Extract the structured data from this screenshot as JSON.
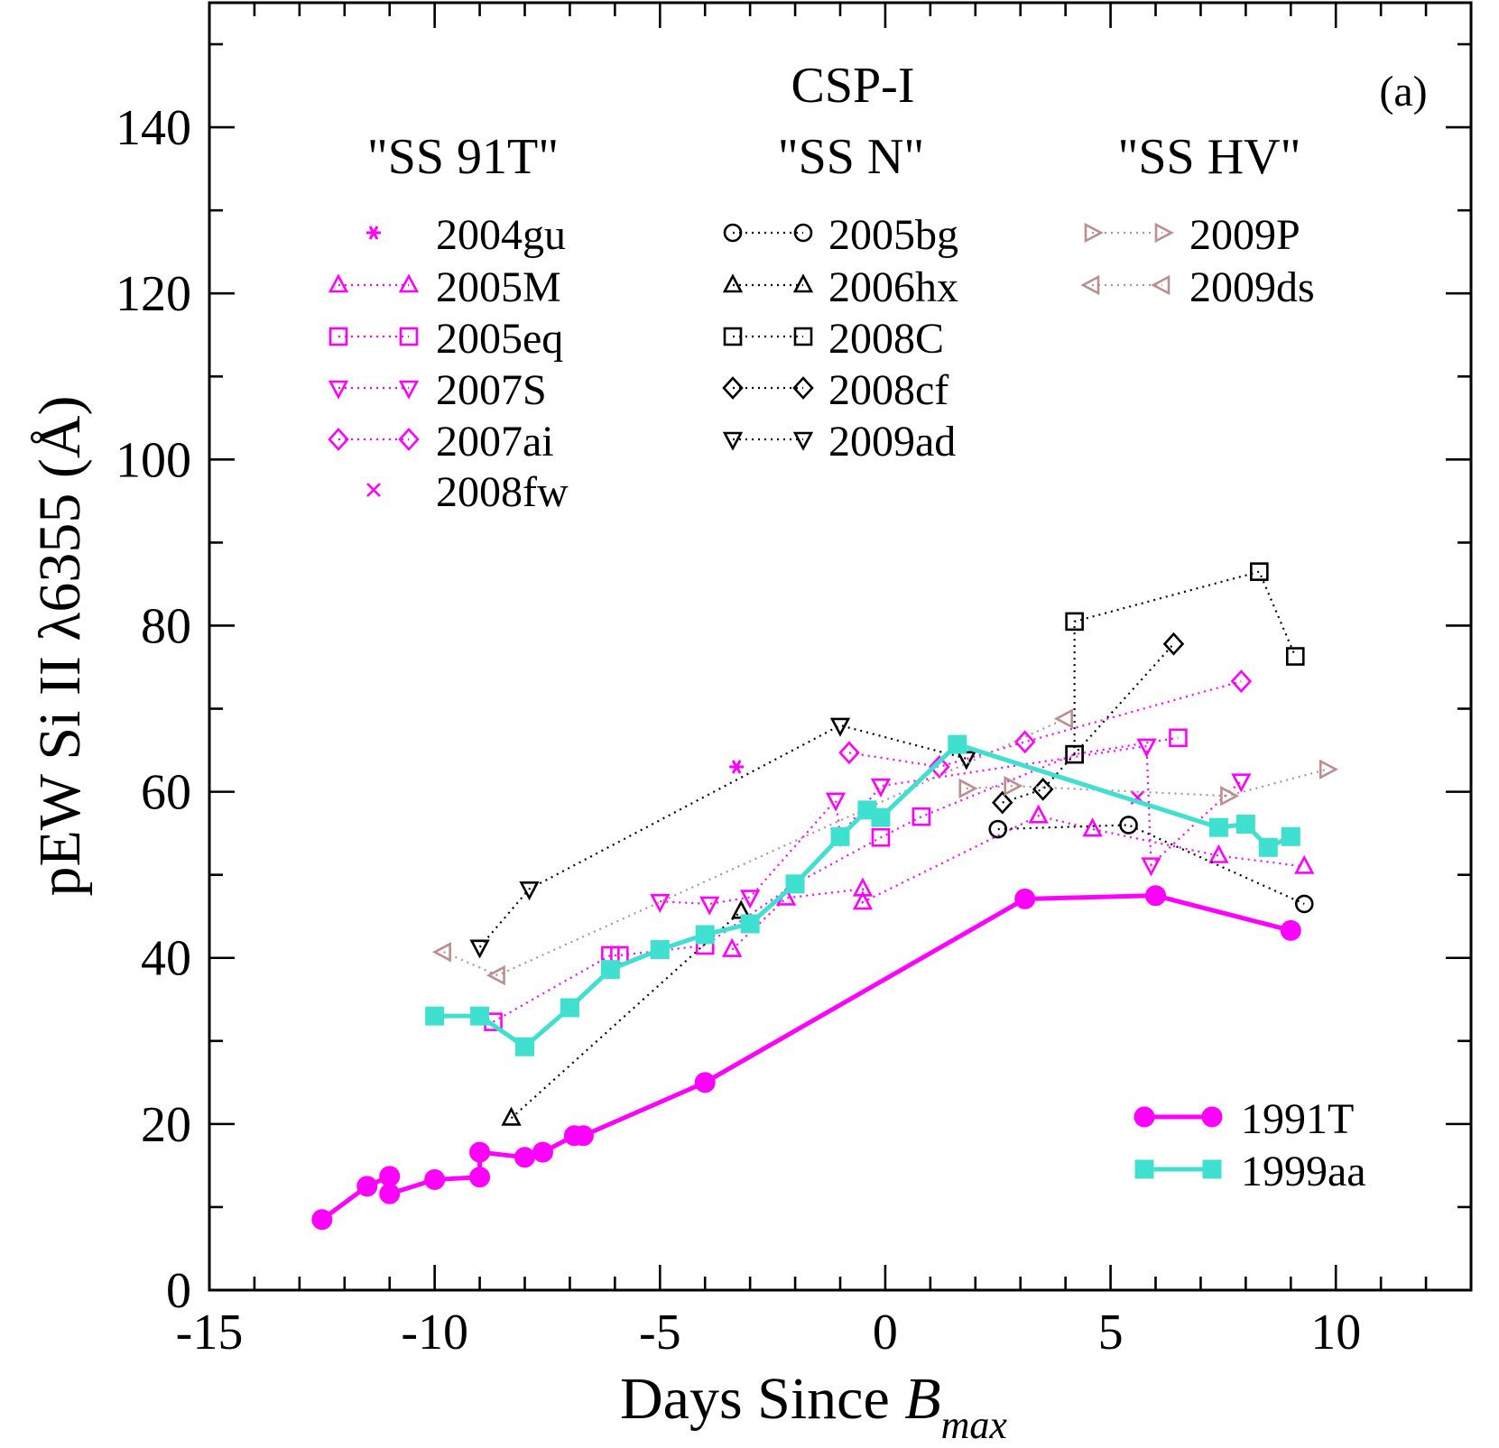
{
  "chart_data": {
    "type": "scatter",
    "title": "CSP-I",
    "panel_label": "(a)",
    "xlabel_main": "Days Since ",
    "xlabel_B": "B",
    "xlabel_sub": "max",
    "ylabel": "pEW Si II λ6355 (Å)",
    "xlim": [
      -15,
      13
    ],
    "ylim": [
      0,
      155
    ],
    "xticks": [
      -15,
      -10,
      -5,
      0,
      5,
      10
    ],
    "yticks": [
      0,
      20,
      40,
      60,
      80,
      100,
      120,
      140
    ],
    "group_labels": [
      "\"SS 91T\"",
      "\"SS N\"",
      "\"SS HV\""
    ],
    "colors": {
      "magenta": "#ff00ff",
      "black": "#000000",
      "brown": "#bc8f8f",
      "cyan": "#40e0d0"
    },
    "series": [
      {
        "name": "2004gu",
        "group": 0,
        "color": "#ff00ff",
        "marker": "asterisk",
        "line": "none",
        "points": [
          [
            -3.3,
            63
          ]
        ]
      },
      {
        "name": "2005M",
        "group": 0,
        "color": "#ff00ff",
        "marker": "triangle-up",
        "line": "dotted",
        "points": [
          [
            -3.4,
            41
          ],
          [
            -2.2,
            47.2
          ],
          [
            -0.5,
            48.3
          ],
          [
            -0.5,
            46.7
          ],
          [
            3.4,
            57.1
          ],
          [
            4.6,
            55.5
          ],
          [
            7.4,
            52.3
          ],
          [
            9.3,
            51
          ]
        ]
      },
      {
        "name": "2005eq",
        "group": 0,
        "color": "#ff00ff",
        "marker": "square",
        "line": "dotted",
        "points": [
          [
            -8.7,
            32.3
          ],
          [
            -6.1,
            40.3
          ],
          [
            -5.9,
            40.3
          ],
          [
            -4,
            41.5
          ],
          [
            -2,
            48.9
          ],
          [
            -0.1,
            54.5
          ],
          [
            0.8,
            57
          ],
          [
            4.2,
            64.5
          ],
          [
            6.5,
            66.5
          ]
        ]
      },
      {
        "name": "2007S",
        "group": 0,
        "color": "#ff00ff",
        "marker": "triangle-down",
        "line": "dotted",
        "points": [
          [
            -5,
            46.8
          ],
          [
            -3.9,
            46.5
          ],
          [
            -3,
            47.3
          ],
          [
            -1.1,
            59
          ],
          [
            -1,
            54.7
          ],
          [
            -0.1,
            60.7
          ],
          [
            5.8,
            65.5
          ],
          [
            5.9,
            51.2
          ],
          [
            7.9,
            61.3
          ]
        ]
      },
      {
        "name": "2007ai",
        "group": 0,
        "color": "#ff00ff",
        "marker": "diamond",
        "line": "dotted",
        "points": [
          [
            -0.8,
            64.7
          ],
          [
            1.2,
            63
          ],
          [
            3.1,
            66
          ],
          [
            7.9,
            73.3
          ]
        ]
      },
      {
        "name": "2008fw",
        "group": 0,
        "color": "#ff00ff",
        "marker": "x",
        "line": "none",
        "points": [
          [
            5.6,
            59.3
          ]
        ]
      },
      {
        "name": "2005bg",
        "group": 1,
        "color": "#000000",
        "marker": "circle",
        "line": "dotted",
        "points": [
          [
            2.5,
            55.5
          ],
          [
            5.4,
            56
          ],
          [
            9.3,
            46.5
          ]
        ]
      },
      {
        "name": "2006hx",
        "group": 1,
        "color": "#000000",
        "marker": "triangle-up",
        "line": "dotted",
        "points": [
          [
            -8.3,
            20.7
          ],
          [
            -3.2,
            45.6
          ]
        ]
      },
      {
        "name": "2008C",
        "group": 1,
        "color": "#000000",
        "marker": "square",
        "line": "dotted",
        "points": [
          [
            4.2,
            64.5
          ],
          [
            4.2,
            80.5
          ],
          [
            8.3,
            86.5
          ],
          [
            9.1,
            76.3
          ]
        ]
      },
      {
        "name": "2008cf",
        "group": 1,
        "color": "#000000",
        "marker": "diamond",
        "line": "dotted",
        "points": [
          [
            2.6,
            58.7
          ],
          [
            3.5,
            60.3
          ],
          [
            6.4,
            77.8
          ]
        ]
      },
      {
        "name": "2009ad",
        "group": 1,
        "color": "#000000",
        "marker": "triangle-down",
        "line": "dotted",
        "points": [
          [
            -9,
            41.3
          ],
          [
            -7.9,
            48.3
          ],
          [
            -1,
            68
          ],
          [
            1.8,
            64
          ]
        ]
      },
      {
        "name": "2009P",
        "group": 2,
        "color": "#bc8f8f",
        "marker": "triangle-right",
        "line": "dotted",
        "points": [
          [
            1.8,
            60.4
          ],
          [
            2.8,
            60.7
          ],
          [
            7.6,
            59.5
          ],
          [
            9.8,
            62.7
          ]
        ]
      },
      {
        "name": "2009ds",
        "group": 2,
        "color": "#bc8f8f",
        "marker": "triangle-left",
        "line": "dotted",
        "points": [
          [
            -9.8,
            40.7
          ],
          [
            -8.6,
            37.9
          ],
          [
            4,
            68.8
          ]
        ]
      },
      {
        "name": "1991T",
        "group": 3,
        "color": "#ff00ff",
        "marker": "filled-circle",
        "line": "solid",
        "points": [
          [
            -12.5,
            8.5
          ],
          [
            -11.5,
            12.5
          ],
          [
            -11,
            13.7
          ],
          [
            -11,
            11.6
          ],
          [
            -10,
            13.3
          ],
          [
            -9,
            13.6
          ],
          [
            -9,
            16.6
          ],
          [
            -8,
            16
          ],
          [
            -7.6,
            16.6
          ],
          [
            -6.9,
            18.6
          ],
          [
            -6.7,
            18.6
          ],
          [
            -4,
            25
          ],
          [
            3.1,
            47.1
          ],
          [
            6,
            47.5
          ],
          [
            9,
            43.3
          ]
        ]
      },
      {
        "name": "1999aa",
        "group": 3,
        "color": "#40e0d0",
        "marker": "filled-square",
        "line": "solid",
        "points": [
          [
            -10,
            33
          ],
          [
            -9,
            33
          ],
          [
            -8,
            29.3
          ],
          [
            -7,
            34
          ],
          [
            -6.1,
            38.6
          ],
          [
            -5,
            41
          ],
          [
            -4,
            42.8
          ],
          [
            -3,
            44.1
          ],
          [
            -2,
            48.9
          ],
          [
            -1,
            54.6
          ],
          [
            -0.4,
            57.8
          ],
          [
            -0.1,
            56.9
          ],
          [
            1.6,
            65.7
          ],
          [
            7.4,
            55.7
          ],
          [
            8,
            56.1
          ],
          [
            8.5,
            53.3
          ],
          [
            9,
            54.6
          ]
        ]
      }
    ]
  }
}
